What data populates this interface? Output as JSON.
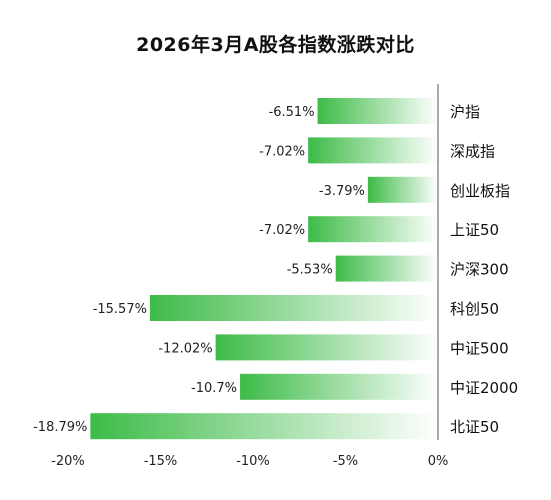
{
  "chart_data": {
    "type": "bar",
    "orientation": "horizontal",
    "title": "2026年3月A股各指数涨跌对比",
    "categories": [
      "沪指",
      "深成指",
      "创业板指",
      "上证50",
      "沪深300",
      "科创50",
      "中证500",
      "中证2000",
      "北证50"
    ],
    "values": [
      -6.51,
      -7.02,
      -3.79,
      -7.02,
      -5.53,
      -15.57,
      -12.02,
      -10.7,
      -18.79
    ],
    "value_labels": [
      "-6.51%",
      "-7.02%",
      "-3.79%",
      "-7.02%",
      "-5.53%",
      "-15.57%",
      "-12.02%",
      "-10.7%",
      "-18.79%"
    ],
    "xlim": [
      -20,
      0
    ],
    "xticks": [
      -20,
      -15,
      -10,
      -5,
      0
    ],
    "xtick_labels": [
      "-20%",
      "-15%",
      "-10%",
      "-5%",
      "0%"
    ],
    "grid": false,
    "colors": {
      "bar_solid": "#3dbb47",
      "bar_fade": "#ffffff",
      "axis": "#555555"
    }
  }
}
